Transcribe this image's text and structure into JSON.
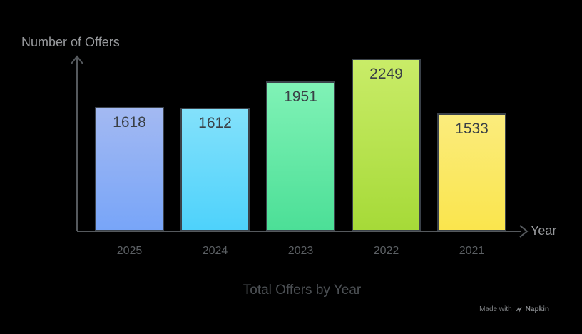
{
  "labels": {
    "y_axis": "Number of Offers",
    "x_axis": "Year",
    "title": "Total Offers by Year"
  },
  "watermark": {
    "made_with": "Made with",
    "brand": "Napkin"
  },
  "colors": {
    "background": "#000000",
    "axis": "#55595D",
    "bar_border": "#3A4149",
    "value_label": "#3A4046",
    "tick_label": "#5C6064",
    "axis_title": "#97999C",
    "chart_title": "#4C5054",
    "watermark": "#808386"
  },
  "chart_data": {
    "type": "bar",
    "title": "Total Offers by Year",
    "xlabel": "Year",
    "ylabel": "Number of Offers",
    "categories": [
      "2025",
      "2024",
      "2023",
      "2022",
      "2021"
    ],
    "values": [
      1618,
      1612,
      1951,
      2249,
      1533
    ],
    "ylim": [
      0,
      2300
    ],
    "grid": false,
    "legend": false,
    "value_labels_shown": true,
    "bar_gradients": [
      {
        "top": "#A3B9F2",
        "bottom": "#78A5F8"
      },
      {
        "top": "#83E1FB",
        "bottom": "#4ED2FB"
      },
      {
        "top": "#80F2B6",
        "bottom": "#4CDF97"
      },
      {
        "top": "#C9EC68",
        "bottom": "#A6DA38"
      },
      {
        "top": "#FBEC7D",
        "bottom": "#FAE54D"
      }
    ]
  }
}
